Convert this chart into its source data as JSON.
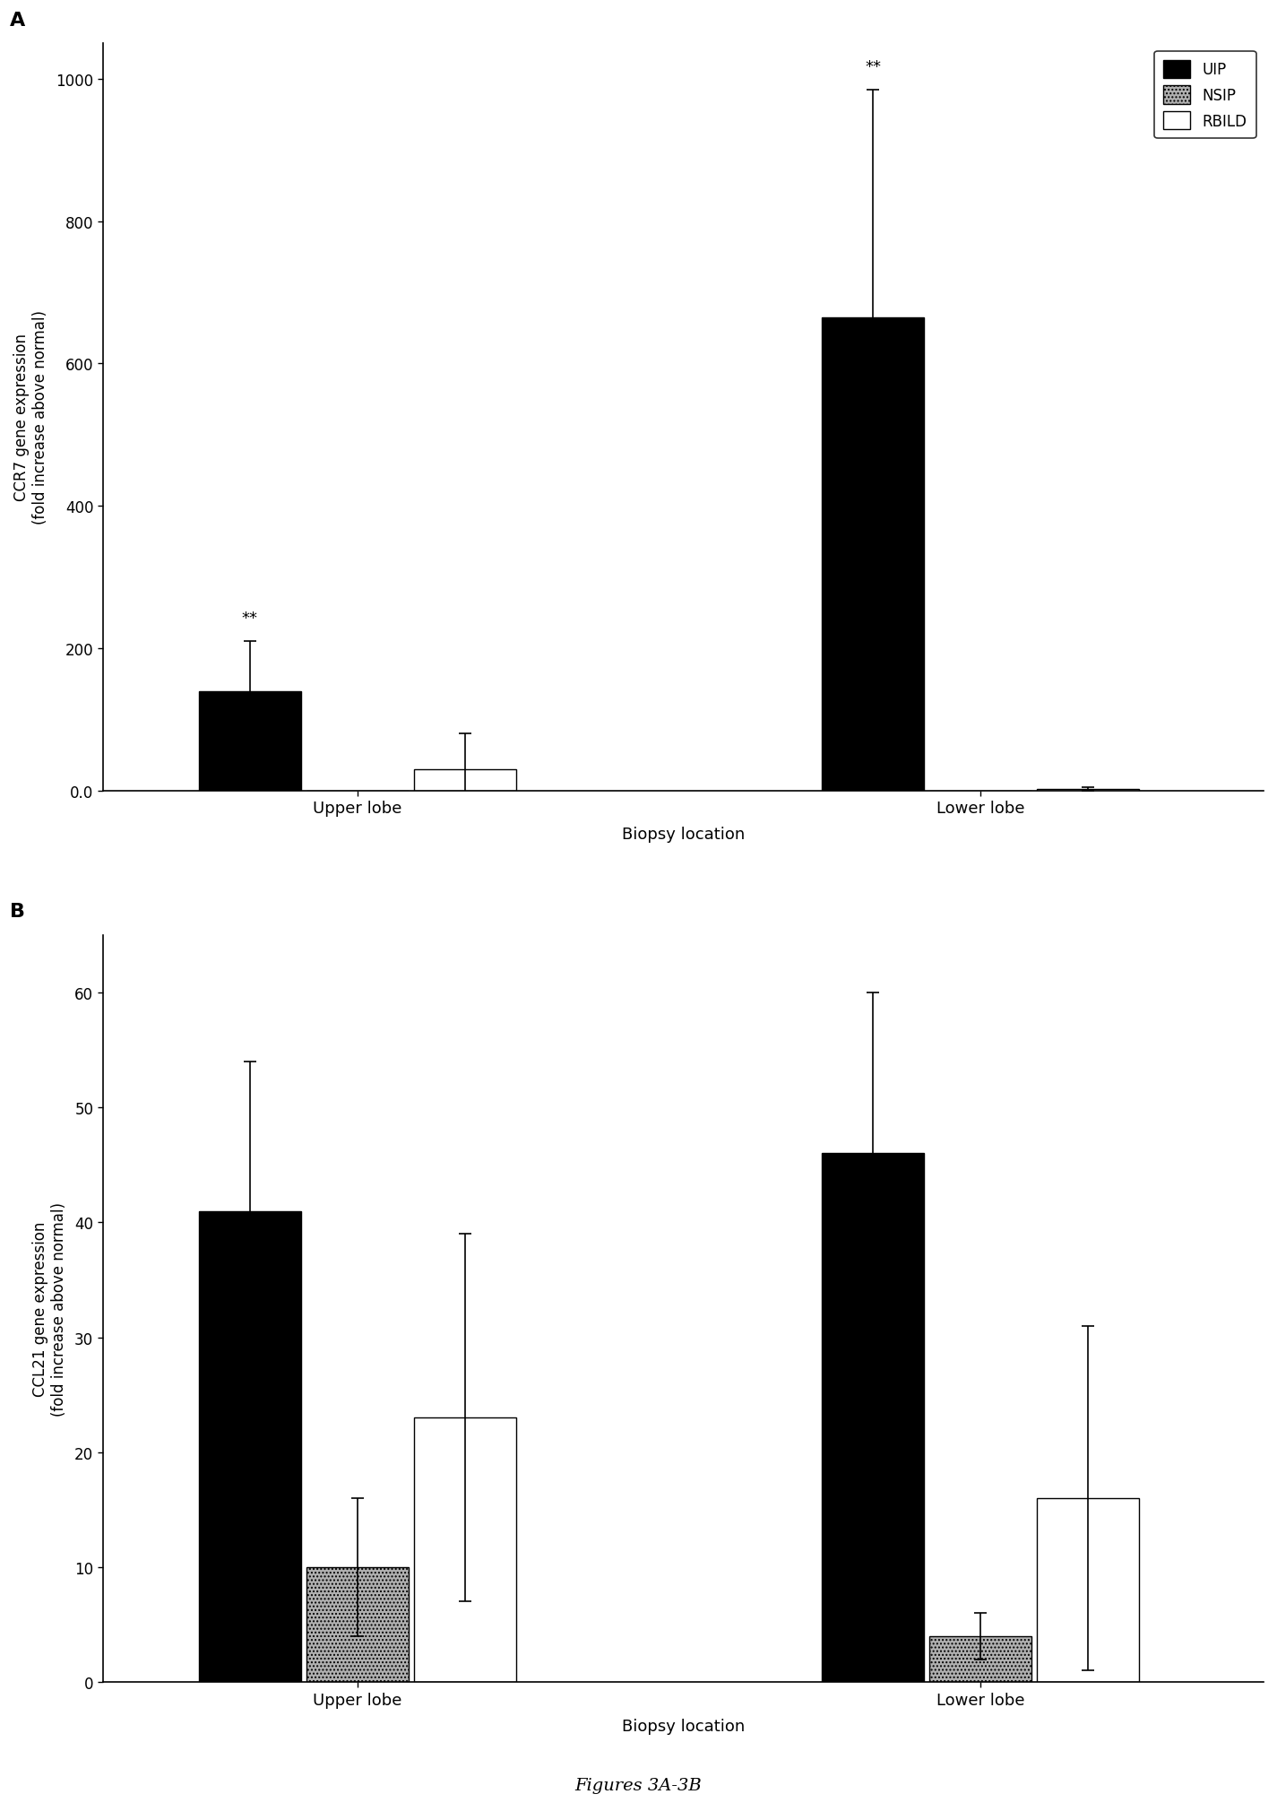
{
  "panel_A": {
    "title": "A",
    "ylabel": "CCR7 gene expression\n(fold increase above normal)",
    "xlabel": "Biopsy location",
    "groups": [
      "Upper lobe",
      "Lower lobe"
    ],
    "series": [
      "UIP",
      "NSIP",
      "RBILD"
    ],
    "values": {
      "UIP": [
        140,
        665
      ],
      "NSIP": [
        0,
        0
      ],
      "RBILD": [
        30,
        2
      ]
    },
    "errors": {
      "UIP": [
        70,
        320
      ],
      "NSIP": [
        0,
        0
      ],
      "RBILD": [
        50,
        2
      ]
    },
    "annot_uip": [
      "**",
      "**"
    ],
    "ylim": [
      0,
      1050
    ],
    "yticks": [
      0,
      200,
      400,
      600,
      800,
      1000
    ],
    "yticklabel_0": "0.0"
  },
  "panel_B": {
    "title": "B",
    "ylabel": "CCL21 gene expression\n(fold increase above normal)",
    "xlabel": "Biopsy location",
    "groups": [
      "Upper lobe",
      "Lower lobe"
    ],
    "series": [
      "UIP",
      "NSIP",
      "RBILD"
    ],
    "values": {
      "UIP": [
        41,
        46
      ],
      "NSIP": [
        10,
        4
      ],
      "RBILD": [
        23,
        16
      ]
    },
    "errors": {
      "UIP": [
        13,
        14
      ],
      "NSIP": [
        6,
        2
      ],
      "RBILD": [
        16,
        15
      ]
    },
    "ylim": [
      0,
      65
    ],
    "yticks": [
      0,
      10,
      20,
      30,
      40,
      50,
      60
    ]
  },
  "colors": {
    "UIP": "#000000",
    "NSIP": "#b0b0b0",
    "RBILD": "#ffffff"
  },
  "legend_labels": [
    "UIP",
    "NSIP",
    "RBILD"
  ],
  "figure_caption": "Figures 3A-3B",
  "bar_width": 0.18,
  "group_centers": [
    1.0,
    2.1
  ]
}
